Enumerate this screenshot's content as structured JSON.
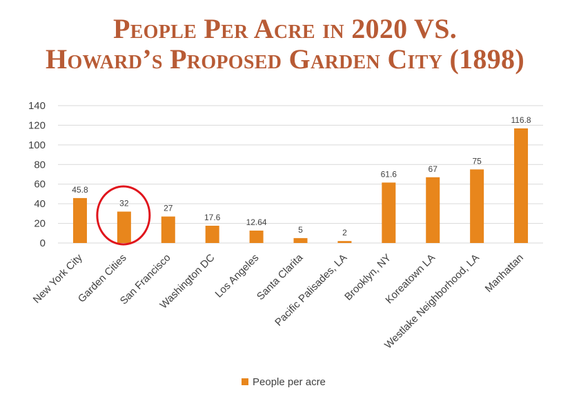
{
  "title_lines": [
    "People Per Acre in 2020 VS.",
    "Howard’s Proposed Garden City (1898)"
  ],
  "colors": {
    "bar": "#E8861C",
    "title": "#B85B35",
    "highlight_circle": "#E0141C",
    "grid": "#D9D9D9",
    "text": "#404040"
  },
  "chart_data": {
    "type": "bar",
    "title": "People Per Acre in 2020 VS. Howard’s Proposed Garden City (1898)",
    "categories": [
      "New York City",
      "Garden Cities",
      "San Francisco",
      "Washington DC",
      "Los Angeles",
      "Santa Clarita",
      "Pacific Palisades, LA",
      "Brooklyn, NY",
      "Koreatown LA",
      "Westlake Neighborhood, LA",
      "Manhattan"
    ],
    "series": [
      {
        "name": "People per acre",
        "values": [
          45.8,
          32,
          27,
          17.6,
          12.64,
          5,
          2,
          61.6,
          67,
          75,
          116.8
        ],
        "data_labels": [
          "45.8",
          "32",
          "27",
          "17.6",
          "12.64",
          "5",
          "2",
          "61.6",
          "67",
          "75",
          "116.8"
        ]
      }
    ],
    "ylim": [
      0,
      140
    ],
    "yticks": [
      0,
      20,
      40,
      60,
      80,
      100,
      120,
      140
    ],
    "grid": true,
    "legend": "bottom",
    "highlighted_category": "Garden Cities",
    "highlight_shape": "circle"
  }
}
